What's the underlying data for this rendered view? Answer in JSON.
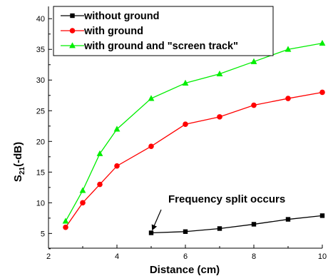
{
  "chart_data": {
    "type": "line",
    "xlabel": "Distance (cm)",
    "ylabel": "S21(-dB)",
    "ylabel_main": "S",
    "ylabel_sub": "21",
    "ylabel_rest": "(-dB)",
    "xlim": [
      2,
      10
    ],
    "ylim": [
      2.6,
      42
    ],
    "xticks": [
      2,
      4,
      6,
      8,
      10
    ],
    "yticks": [
      5,
      10,
      15,
      20,
      25,
      30,
      35,
      40
    ],
    "grid": false,
    "legend_position": "top",
    "series": [
      {
        "name": "without ground",
        "color": "#000000",
        "marker": "square",
        "x": [
          5,
          6,
          7,
          8,
          9,
          10
        ],
        "y": [
          5.1,
          5.3,
          5.8,
          6.5,
          7.3,
          7.9
        ]
      },
      {
        "name": "with ground",
        "color": "#ff0000",
        "marker": "circle",
        "x": [
          2.5,
          3,
          3.5,
          4,
          5,
          6,
          7,
          8,
          9,
          10
        ],
        "y": [
          6.0,
          10.0,
          13.0,
          16.0,
          19.2,
          22.8,
          24.0,
          25.9,
          27.0,
          28.0
        ]
      },
      {
        "name": "with ground and \"screen track\"",
        "color": "#00ee00",
        "marker": "triangle",
        "x": [
          2.5,
          3,
          3.5,
          4,
          5,
          6,
          7,
          8,
          9,
          10
        ],
        "y": [
          7.0,
          12.0,
          18.0,
          22.0,
          27.0,
          29.5,
          31.0,
          33.0,
          35.0,
          36.0
        ]
      }
    ],
    "annotations": [
      {
        "text": "Frequency split occurs",
        "arrow_to": {
          "x": 5,
          "y": 5.1
        }
      }
    ]
  }
}
